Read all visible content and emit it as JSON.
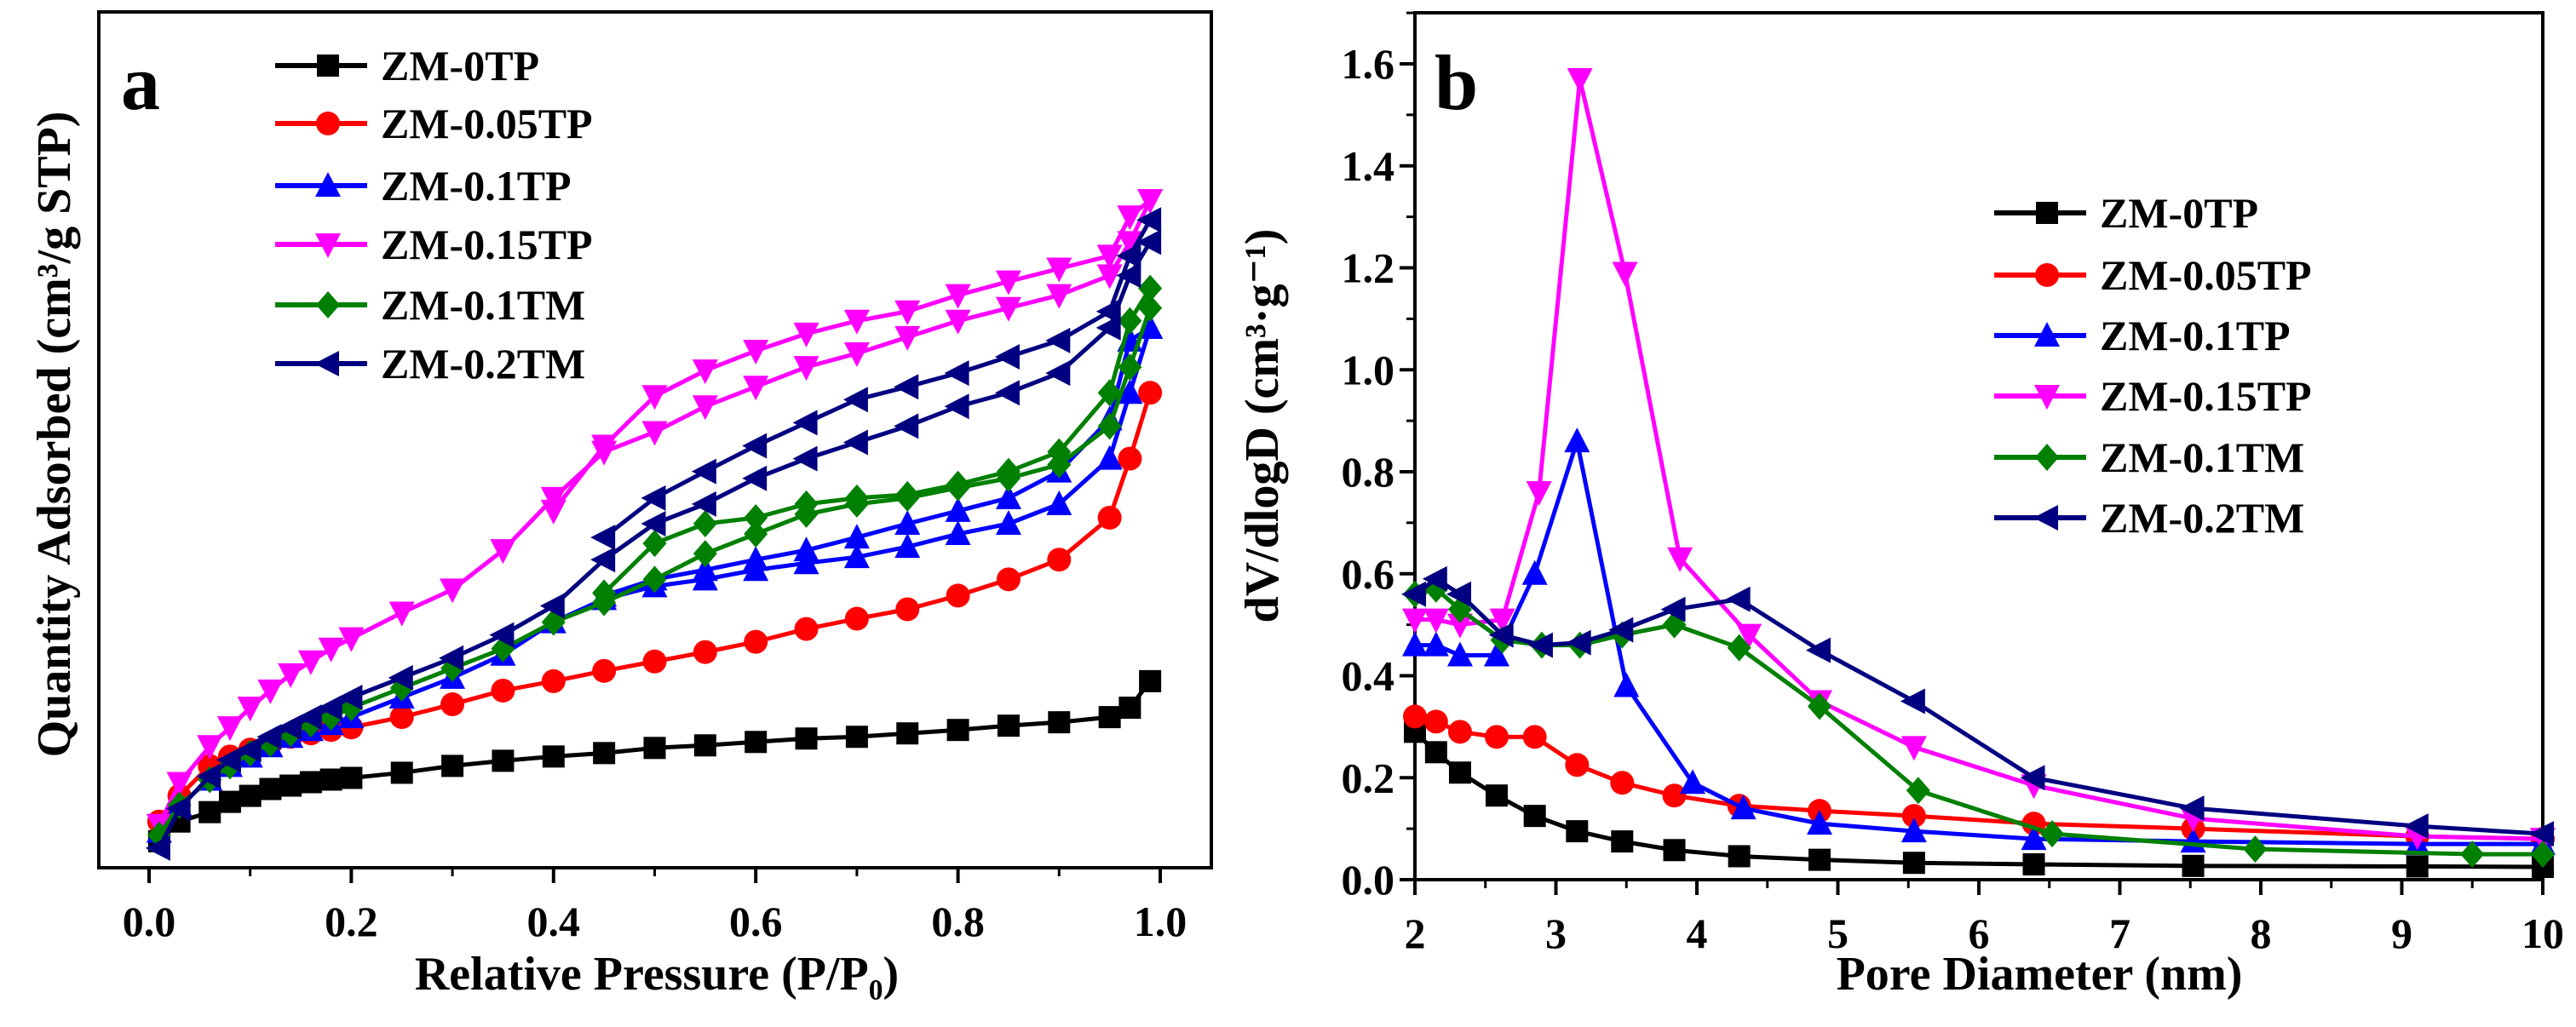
{
  "chart_data": [
    {
      "type": "line",
      "panel": "a",
      "xlabel": "Relative Pressure (P/P₀)",
      "ylabel": "Quantity Adsorbed (cm³/g STP)",
      "xlim": [
        0,
        1.0
      ],
      "ylim": [
        0,
        100
      ],
      "y_units_note": "relative scale (no y tick labels shown)",
      "xticks": [
        "0.0",
        "0.2",
        "0.4",
        "0.6",
        "0.8",
        "1.0"
      ],
      "grid": false,
      "legend_placement": "top-left",
      "series": [
        {
          "name": "ZM-0TP",
          "color": "#000000",
          "marker": "square",
          "x": [
            0.01,
            0.03,
            0.06,
            0.08,
            0.1,
            0.12,
            0.14,
            0.16,
            0.18,
            0.2,
            0.25,
            0.3,
            0.35,
            0.4,
            0.45,
            0.5,
            0.55,
            0.6,
            0.65,
            0.7,
            0.75,
            0.8,
            0.85,
            0.9,
            0.95,
            0.97,
            0.99
          ],
          "y": [
            3.1,
            5.4,
            6.5,
            7.7,
            8.4,
            9.2,
            9.6,
            10,
            10.3,
            10.5,
            11.1,
            11.9,
            12.5,
            13,
            13.4,
            14,
            14.3,
            14.7,
            15.1,
            15.3,
            15.7,
            16.1,
            16.6,
            17,
            17.6,
            18.7,
            21.8
          ],
          "desorption_x": [],
          "desorption_y": []
        },
        {
          "name": "ZM-0.05TP",
          "color": "#ff0000",
          "marker": "circle",
          "x": [
            0.01,
            0.03,
            0.06,
            0.08,
            0.1,
            0.12,
            0.14,
            0.16,
            0.18,
            0.2,
            0.25,
            0.3,
            0.35,
            0.4,
            0.45,
            0.5,
            0.55,
            0.6,
            0.65,
            0.7,
            0.75,
            0.8,
            0.85,
            0.9,
            0.95,
            0.97,
            0.99
          ],
          "y": [
            5.4,
            8.4,
            11.9,
            13,
            13.8,
            14.5,
            15.3,
            15.7,
            16.1,
            16.4,
            17.6,
            19.1,
            20.7,
            21.8,
            23,
            24.1,
            25.2,
            26.4,
            27.9,
            29.1,
            30.2,
            31.8,
            33.7,
            36,
            40.9,
            47.8,
            55.5
          ],
          "desorption_x": [],
          "desorption_y": []
        },
        {
          "name": "ZM-0.1TP",
          "color": "#0000ff",
          "marker": "triangle-up",
          "x": [
            0.01,
            0.03,
            0.06,
            0.08,
            0.1,
            0.12,
            0.14,
            0.16,
            0.18,
            0.2,
            0.25,
            0.3,
            0.35,
            0.4,
            0.45,
            0.5,
            0.55,
            0.6,
            0.65,
            0.7,
            0.75,
            0.8,
            0.85,
            0.9,
            0.95,
            0.97,
            0.99
          ],
          "y": [
            4.2,
            7.3,
            10.3,
            11.9,
            13,
            14.2,
            15.3,
            16.1,
            16.8,
            17.6,
            19.9,
            22.2,
            24.9,
            28.7,
            31.4,
            32.9,
            33.7,
            34.8,
            35.6,
            36.3,
            37.5,
            39,
            40.2,
            42.5,
            47.8,
            55.5,
            63.1
          ],
          "desorption_x": [
            0.99,
            0.97,
            0.95,
            0.9,
            0.85,
            0.8,
            0.75,
            0.7,
            0.65,
            0.6,
            0.55,
            0.5,
            0.45
          ],
          "desorption_y": [
            63.1,
            61.6,
            52.4,
            46.3,
            43.2,
            41.7,
            40.2,
            38.6,
            37.1,
            36,
            34.8,
            33.7,
            31.8
          ]
        },
        {
          "name": "ZM-0.15TP",
          "color": "#ff00ff",
          "marker": "triangle-down",
          "x": [
            0.01,
            0.03,
            0.06,
            0.08,
            0.1,
            0.12,
            0.14,
            0.16,
            0.18,
            0.2,
            0.25,
            0.3,
            0.35,
            0.4,
            0.45,
            0.5,
            0.55,
            0.6,
            0.65,
            0.7,
            0.75,
            0.8,
            0.85,
            0.9,
            0.95,
            0.97,
            0.99
          ],
          "y": [
            5,
            9.9,
            14.2,
            16.4,
            18.7,
            20.7,
            22.6,
            24.1,
            25.6,
            26.8,
            29.8,
            32.5,
            37.1,
            43.2,
            48.6,
            50.9,
            53.9,
            56.2,
            58.5,
            60.1,
            62,
            63.9,
            65.4,
            66.9,
            69.2,
            73.1,
            78
          ],
          "desorption_x": [
            0.99,
            0.97,
            0.95,
            0.9,
            0.85,
            0.8,
            0.75,
            0.7,
            0.65,
            0.6,
            0.55,
            0.5,
            0.45,
            0.4
          ],
          "desorption_y": [
            78,
            76.1,
            71.5,
            70,
            68.5,
            66.9,
            65,
            63.9,
            62.4,
            60.4,
            58.1,
            55.1,
            49.3,
            41.7
          ]
        },
        {
          "name": "ZM-0.1TM",
          "color": "#008000",
          "marker": "diamond",
          "x": [
            0.01,
            0.03,
            0.06,
            0.08,
            0.1,
            0.12,
            0.14,
            0.16,
            0.18,
            0.2,
            0.25,
            0.3,
            0.35,
            0.4,
            0.45,
            0.5,
            0.55,
            0.6,
            0.65,
            0.7,
            0.75,
            0.8,
            0.85,
            0.9,
            0.95,
            0.97,
            0.99
          ],
          "y": [
            3.8,
            7.3,
            10.3,
            11.9,
            13.4,
            14.5,
            15.7,
            16.8,
            17.6,
            18.7,
            21,
            23.3,
            25.6,
            28.7,
            31,
            33.7,
            36.7,
            39,
            41.3,
            42.5,
            43.2,
            44.4,
            45.5,
            47.1,
            51.6,
            58.5,
            65.4
          ],
          "desorption_x": [
            0.99,
            0.97,
            0.95,
            0.9,
            0.85,
            0.8,
            0.75,
            0.7,
            0.65,
            0.6,
            0.55,
            0.5,
            0.45
          ],
          "desorption_y": [
            67.7,
            63.9,
            55.5,
            48.6,
            46.3,
            44.8,
            43.6,
            43.2,
            42.5,
            40.9,
            40.2,
            37.9,
            32.1
          ]
        },
        {
          "name": "ZM-0.2TM",
          "color": "#000080",
          "marker": "triangle-left",
          "x": [
            0.01,
            0.03,
            0.06,
            0.08,
            0.1,
            0.12,
            0.14,
            0.16,
            0.18,
            0.2,
            0.25,
            0.3,
            0.35,
            0.4,
            0.45,
            0.5,
            0.55,
            0.6,
            0.65,
            0.7,
            0.75,
            0.8,
            0.85,
            0.9,
            0.95,
            0.97,
            0.99
          ],
          "y": [
            2.3,
            6.9,
            10.7,
            12.6,
            13.8,
            15.3,
            16.4,
            17.6,
            18.7,
            19.9,
            22.2,
            24.5,
            27.2,
            30.6,
            36,
            40.2,
            42.5,
            45.5,
            47.8,
            49.7,
            51.6,
            53.9,
            55.5,
            57.8,
            63.1,
            69.2,
            73.1
          ],
          "desorption_x": [
            0.99,
            0.97,
            0.95,
            0.9,
            0.85,
            0.8,
            0.75,
            0.7,
            0.65,
            0.6,
            0.55,
            0.5,
            0.45
          ],
          "desorption_y": [
            75.7,
            71.5,
            65,
            61.6,
            59.7,
            57.8,
            56.2,
            54.7,
            52,
            49.3,
            46.3,
            43.2,
            38.6
          ]
        }
      ]
    },
    {
      "type": "line",
      "panel": "b",
      "xlabel": "Pore Diameter (nm)",
      "ylabel": "dV/dlogD (cm³·g⁻¹)",
      "xlim": [
        2,
        10
      ],
      "ylim": [
        0,
        1.7
      ],
      "xticks": [
        "2",
        "3",
        "4",
        "5",
        "6",
        "7",
        "8",
        "9",
        "10"
      ],
      "yticks": [
        "0.0",
        "0.2",
        "0.4",
        "0.6",
        "0.8",
        "1.0",
        "1.2",
        "1.4",
        "1.6"
      ],
      "grid": false,
      "legend_placement": "center-right",
      "series": [
        {
          "name": "ZM-0TP",
          "color": "#000000",
          "marker": "square",
          "x": [
            2,
            2.15,
            2.32,
            2.58,
            2.85,
            3.15,
            3.47,
            3.84,
            4.3,
            4.87,
            5.54,
            6.39,
            7.52,
            9.11,
            10
          ],
          "y": [
            0.29,
            0.25,
            0.21,
            0.165,
            0.125,
            0.095,
            0.075,
            0.058,
            0.046,
            0.039,
            0.033,
            0.03,
            0.027,
            0.026,
            0.025
          ]
        },
        {
          "name": "ZM-0.05TP",
          "color": "#ff0000",
          "marker": "circle",
          "x": [
            2,
            2.15,
            2.32,
            2.58,
            2.85,
            3.15,
            3.47,
            3.84,
            4.3,
            4.87,
            5.54,
            6.39,
            7.52,
            9.11,
            10
          ],
          "y": [
            0.32,
            0.31,
            0.29,
            0.28,
            0.28,
            0.225,
            0.19,
            0.165,
            0.145,
            0.135,
            0.125,
            0.11,
            0.1,
            0.085,
            0.08
          ]
        },
        {
          "name": "ZM-0.1TP",
          "color": "#0000ff",
          "marker": "triangle-up",
          "x": [
            2,
            2.15,
            2.32,
            2.58,
            2.85,
            3.15,
            3.5,
            3.97,
            4.33,
            4.87,
            5.54,
            6.39,
            7.52,
            9.11,
            10
          ],
          "y": [
            0.46,
            0.46,
            0.44,
            0.44,
            0.6,
            0.86,
            0.38,
            0.19,
            0.14,
            0.11,
            0.095,
            0.08,
            0.075,
            0.07,
            0.07
          ]
        },
        {
          "name": "ZM-0.15TP",
          "color": "#ff00ff",
          "marker": "triangle-down",
          "x": [
            2,
            2.15,
            2.32,
            2.62,
            2.88,
            3.17,
            3.49,
            3.88,
            4.37,
            4.87,
            5.54,
            6.39,
            7.52,
            9.11,
            10
          ],
          "y": [
            0.51,
            0.51,
            0.5,
            0.51,
            0.76,
            1.57,
            1.19,
            0.63,
            0.48,
            0.35,
            0.26,
            0.185,
            0.12,
            0.085,
            0.08
          ]
        },
        {
          "name": "ZM-0.1TM",
          "color": "#008000",
          "marker": "diamond",
          "x": [
            2,
            2.15,
            2.32,
            2.62,
            2.9,
            3.17,
            3.47,
            3.84,
            4.3,
            4.87,
            5.57,
            6.52,
            7.96,
            9.5,
            10
          ],
          "y": [
            0.56,
            0.57,
            0.53,
            0.47,
            0.46,
            0.46,
            0.48,
            0.5,
            0.455,
            0.34,
            0.175,
            0.09,
            0.06,
            0.05,
            0.05
          ]
        },
        {
          "name": "ZM-0.2TM",
          "color": "#000080",
          "marker": "triangle-left",
          "x": [
            2,
            2.15,
            2.32,
            2.62,
            2.9,
            3.17,
            3.47,
            3.84,
            4.3,
            4.87,
            5.54,
            6.39,
            7.52,
            9.11,
            10
          ],
          "y": [
            0.56,
            0.59,
            0.56,
            0.48,
            0.46,
            0.465,
            0.49,
            0.53,
            0.55,
            0.45,
            0.35,
            0.2,
            0.14,
            0.105,
            0.09
          ]
        }
      ]
    }
  ],
  "panel_labels": [
    "a",
    "b"
  ]
}
